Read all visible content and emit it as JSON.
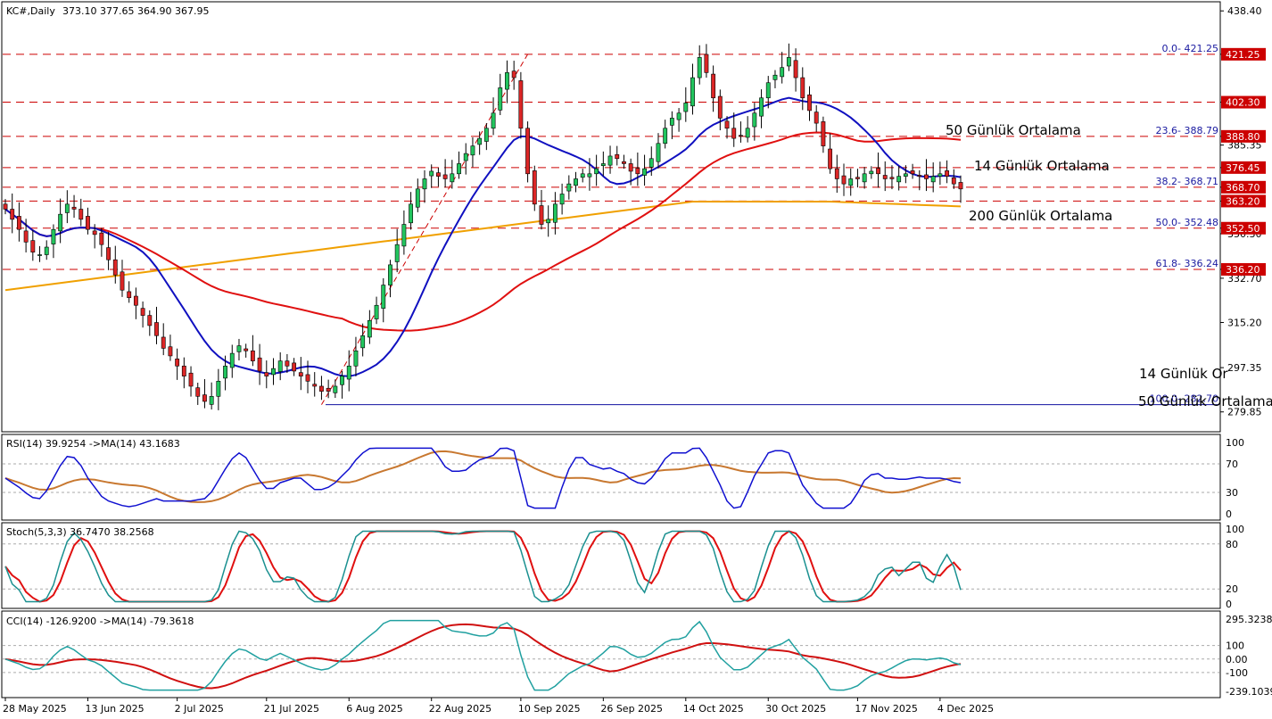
{
  "header": {
    "symbol": "KC#,Daily",
    "ohlc": "373.10 377.65 364.90 367.95"
  },
  "colors": {
    "bull": "#22c55e",
    "bear": "#dc2626",
    "wick": "#000000",
    "ma14": "#1010c0",
    "ma50": "#e01010",
    "ma200": "#f0a000",
    "level": "#cc0000",
    "fibline": "#1010a0",
    "rsi": "#1010d0",
    "rsi_ma": "#c87830",
    "stoch_main": "#1a9090",
    "stoch_signal": "#e01010",
    "cci": "#20a0a0",
    "cci_ma": "#d01010"
  },
  "chart_data": [
    {
      "type": "candlestick",
      "symbol": "KC#",
      "timeframe": "Daily",
      "ylim": [
        272,
        442
      ],
      "price_ticks": [
        "438.40",
        "421.25",
        "402.30",
        "388.80",
        "385.35",
        "376.45",
        "368.70",
        "363.20",
        "352.50",
        "350.30",
        "336.20",
        "332.70",
        "315.20",
        "297.35",
        "279.85"
      ],
      "x_labels": [
        "28 May 2025",
        "13 Jun 2025",
        "2 Jul 2025",
        "21 Jul 2025",
        "6 Aug 2025",
        "22 Aug 2025",
        "10 Sep 2025",
        "26 Sep 2025",
        "14 Oct 2025",
        "30 Oct 2025",
        "17 Nov 2025",
        "4 Dec 2025"
      ],
      "x_label_bar_index": [
        0,
        12,
        25,
        38,
        50,
        62,
        75,
        87,
        99,
        111,
        124,
        136
      ],
      "bar_count": 140,
      "horizontal_levels": [
        {
          "price": 421.25,
          "label": "421.25"
        },
        {
          "price": 402.3,
          "label": "402.30"
        },
        {
          "price": 388.8,
          "label": "388.80"
        },
        {
          "price": 376.45,
          "label": "376.45"
        },
        {
          "price": 368.7,
          "label": "368.70"
        },
        {
          "price": 363.2,
          "label": "363.20"
        },
        {
          "price": 352.5,
          "label": "352.50"
        },
        {
          "price": 336.2,
          "label": "336.20"
        }
      ],
      "fibonacci": [
        {
          "price": 421.25,
          "label": "0.0- 421.25"
        },
        {
          "price": 388.79,
          "label": "23.6- 388.79"
        },
        {
          "price": 368.71,
          "label": "38.2- 368.71"
        },
        {
          "price": 352.48,
          "label": "50.0- 352.48"
        },
        {
          "price": 336.24,
          "label": "61.8- 336.24"
        },
        {
          "price": 282.7,
          "label": "100.0- 282.70"
        }
      ],
      "annotations": [
        {
          "text": "50 Günlük Ortalama",
          "color": "#e01010"
        },
        {
          "text": "14 Günlük Ortalama",
          "color": "#1010c0"
        },
        {
          "text": "200 Günlük Ortalama",
          "color": "#f0a000"
        },
        {
          "text": "14 Günlük Or",
          "color": "#1010c0"
        },
        {
          "text": "50 Günlük Ortalama",
          "color": "#e01010"
        }
      ],
      "ma_series": [
        {
          "name": "14 Günlük Ortalama",
          "period": 14
        },
        {
          "name": "50 Günlük Ortalama",
          "period": 50
        },
        {
          "name": "200 Günlük Ortalama",
          "period": 200
        }
      ],
      "closes": [
        360,
        356,
        352,
        347,
        343,
        342,
        345,
        352,
        358,
        362,
        360,
        356,
        352,
        350,
        346,
        340,
        334,
        328,
        325,
        322,
        318,
        314,
        310,
        305,
        302,
        298,
        294,
        290,
        286,
        284,
        286,
        292,
        298,
        303,
        306,
        304,
        300,
        296,
        294,
        297,
        300,
        298,
        296,
        294,
        292,
        290,
        288,
        288,
        290,
        294,
        298,
        304,
        310,
        316,
        322,
        330,
        338,
        346,
        354,
        362,
        368,
        372,
        375,
        373,
        372,
        374,
        378,
        382,
        385,
        388,
        392,
        398,
        408,
        414,
        412,
        392,
        374,
        362,
        354,
        356,
        362,
        366,
        370,
        372,
        374,
        374,
        376,
        378,
        381,
        380,
        378,
        375,
        374,
        376,
        380,
        386,
        392,
        396,
        398,
        402,
        412,
        420,
        414,
        404,
        396,
        392,
        388,
        389,
        392,
        398,
        404,
        410,
        413,
        416,
        420,
        412,
        404,
        399,
        394,
        385,
        376,
        372,
        370,
        372,
        372,
        374,
        375,
        374,
        372,
        372,
        373,
        374,
        374,
        373,
        372,
        373,
        374,
        373,
        370,
        368
      ]
    },
    {
      "type": "line",
      "name": "RSI",
      "header": "RSI(14) 39.9254 ->MA(14) 43.1683",
      "ylim": [
        0,
        100
      ],
      "ticks": [
        "100",
        "70",
        "30",
        "0"
      ],
      "levels": [
        70,
        30
      ]
    },
    {
      "type": "line",
      "name": "Stochastic",
      "header": "Stoch(5,3,3) 36.7470 38.2568",
      "ylim": [
        0,
        100
      ],
      "ticks": [
        "100",
        "80",
        "20",
        "0"
      ],
      "levels": [
        80,
        20
      ]
    },
    {
      "type": "line",
      "name": "CCI",
      "header": "CCI(14) -126.9200 ->MA(14) -79.3618",
      "ylim": [
        -239.1039,
        295.3238
      ],
      "ticks": [
        "295.3238",
        "100",
        "0.00",
        "-100",
        "-239.1039"
      ],
      "levels": [
        100,
        0,
        -100
      ]
    }
  ]
}
